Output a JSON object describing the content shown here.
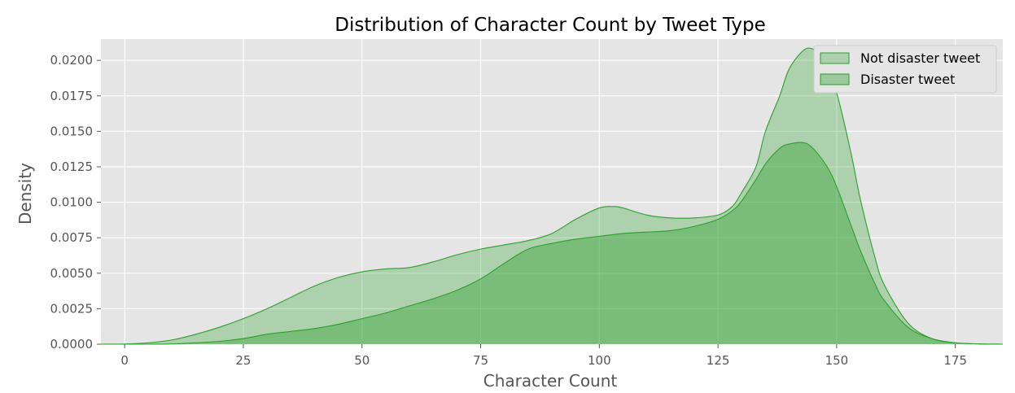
{
  "chart_data": {
    "type": "area",
    "title": "Distribution of Character Count by Tweet Type",
    "xlabel": "Character Count",
    "ylabel": "Density",
    "xlim": [
      -5,
      185
    ],
    "ylim": [
      0,
      0.0215
    ],
    "xticks": [
      0,
      25,
      50,
      75,
      100,
      125,
      150,
      175
    ],
    "xtick_labels": [
      "0",
      "25",
      "50",
      "75",
      "100",
      "125",
      "150",
      "175"
    ],
    "yticks": [
      0,
      0.0025,
      0.005,
      0.0075,
      0.01,
      0.0125,
      0.015,
      0.0175,
      0.02
    ],
    "ytick_labels": [
      "0.0000",
      "0.0025",
      "0.0050",
      "0.0075",
      "0.0100",
      "0.0125",
      "0.0150",
      "0.0175",
      "0.0200"
    ],
    "grid": true,
    "legend_position": "top-right",
    "colors": {
      "background": "#e5e5e5",
      "grid": "#ffffff",
      "fill": "#2ca02c",
      "line": "#2ca02c"
    },
    "series": [
      {
        "name": "Not disaster tweet",
        "fill_opacity": 0.3,
        "x": [
          -5,
          0,
          5,
          10,
          15,
          20,
          25,
          30,
          35,
          40,
          45,
          50,
          55,
          60,
          65,
          70,
          75,
          80,
          85,
          90,
          95,
          100,
          103,
          105,
          110,
          115,
          120,
          125,
          128,
          130,
          133,
          135,
          138,
          140,
          143,
          145,
          147,
          150,
          153,
          155,
          158,
          160,
          165,
          170,
          175,
          180,
          185
        ],
        "y": [
          0,
          1e-05,
          0.0001,
          0.0003,
          0.0007,
          0.0012,
          0.0018,
          0.0025,
          0.0033,
          0.0041,
          0.0047,
          0.0051,
          0.0053,
          0.0054,
          0.0058,
          0.0063,
          0.0067,
          0.007,
          0.0073,
          0.0078,
          0.0088,
          0.0096,
          0.0097,
          0.0096,
          0.0091,
          0.0089,
          0.0089,
          0.0091,
          0.0097,
          0.0107,
          0.0125,
          0.015,
          0.0175,
          0.0194,
          0.0207,
          0.0208,
          0.0202,
          0.0177,
          0.0135,
          0.0102,
          0.0062,
          0.0042,
          0.0015,
          0.0004,
          0.0001,
          2e-05,
          0
        ]
      },
      {
        "name": "Disaster tweet",
        "fill_opacity": 0.4,
        "x": [
          -5,
          0,
          5,
          10,
          15,
          20,
          25,
          30,
          35,
          40,
          45,
          50,
          55,
          60,
          65,
          70,
          75,
          80,
          85,
          90,
          95,
          100,
          105,
          110,
          115,
          120,
          125,
          128,
          130,
          133,
          135,
          138,
          140,
          143,
          145,
          148,
          150,
          153,
          155,
          158,
          160,
          165,
          170,
          175,
          180,
          185
        ],
        "y": [
          0,
          0,
          0,
          2e-05,
          0.0001,
          0.0002,
          0.0004,
          0.0007,
          0.0009,
          0.0011,
          0.0014,
          0.0018,
          0.0022,
          0.0027,
          0.0032,
          0.0038,
          0.0046,
          0.0057,
          0.0067,
          0.0071,
          0.0074,
          0.0076,
          0.0078,
          0.0079,
          0.008,
          0.0083,
          0.0088,
          0.0094,
          0.0101,
          0.0116,
          0.0127,
          0.0138,
          0.0141,
          0.0142,
          0.0138,
          0.0125,
          0.0111,
          0.0084,
          0.0066,
          0.0043,
          0.0031,
          0.0012,
          0.0004,
          0.0001,
          2e-05,
          0
        ]
      }
    ]
  }
}
